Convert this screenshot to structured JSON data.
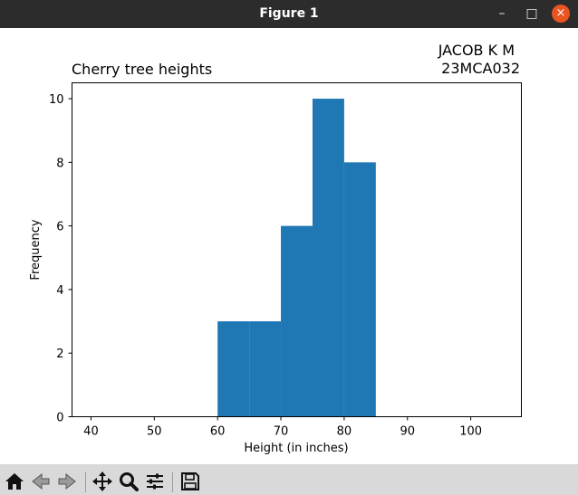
{
  "window": {
    "title": "Figure 1",
    "controls": {
      "minimize": "–",
      "maximize": "□",
      "close": "×"
    }
  },
  "annotation": {
    "line1": "JACOB K M",
    "line2": "23MCA032"
  },
  "chart_data": {
    "type": "bar",
    "title": "Cherry tree heights",
    "xlabel": "Height (in inches)",
    "ylabel": "Frequency",
    "xlim": [
      37,
      108
    ],
    "ylim": [
      0,
      10.5
    ],
    "xticks": [
      40,
      50,
      60,
      70,
      80,
      90,
      100
    ],
    "yticks": [
      0,
      2,
      4,
      6,
      8,
      10
    ],
    "bar_color": "#1f77b4",
    "bins": [
      {
        "x0": 60,
        "x1": 65,
        "count": 3
      },
      {
        "x0": 65,
        "x1": 70,
        "count": 3
      },
      {
        "x0": 70,
        "x1": 75,
        "count": 6
      },
      {
        "x0": 75,
        "x1": 80,
        "count": 10
      },
      {
        "x0": 80,
        "x1": 85,
        "count": 8
      }
    ],
    "grid": false,
    "legend": "none"
  },
  "toolbar": {
    "items": [
      "home-icon",
      "back-icon",
      "forward-icon",
      "pan-icon",
      "zoom-icon",
      "configure-subplots-icon",
      "save-icon"
    ]
  }
}
